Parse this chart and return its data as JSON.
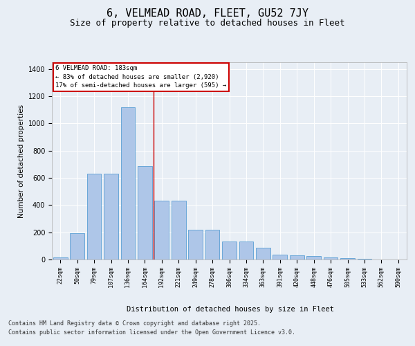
{
  "title1": "6, VELMEAD ROAD, FLEET, GU52 7JY",
  "title2": "Size of property relative to detached houses in Fleet",
  "xlabel": "Distribution of detached houses by size in Fleet",
  "ylabel": "Number of detached properties",
  "categories": [
    "22sqm",
    "50sqm",
    "79sqm",
    "107sqm",
    "136sqm",
    "164sqm",
    "192sqm",
    "221sqm",
    "249sqm",
    "278sqm",
    "306sqm",
    "334sqm",
    "363sqm",
    "391sqm",
    "420sqm",
    "448sqm",
    "476sqm",
    "505sqm",
    "533sqm",
    "562sqm",
    "590sqm"
  ],
  "values": [
    15,
    195,
    630,
    630,
    1120,
    685,
    430,
    430,
    220,
    220,
    130,
    130,
    85,
    35,
    30,
    25,
    15,
    10,
    5,
    0,
    0
  ],
  "bar_color": "#aec6e8",
  "bar_edge_color": "#5a9fd4",
  "annotation_title": "6 VELMEAD ROAD: 183sqm",
  "annotation_line1": "← 83% of detached houses are smaller (2,920)",
  "annotation_line2": "17% of semi-detached houses are larger (595) →",
  "annotation_box_facecolor": "#ffffff",
  "annotation_box_edgecolor": "#cc0000",
  "vline_color": "#cc0000",
  "vline_x": 5.5,
  "ylim": [
    0,
    1450
  ],
  "yticks": [
    0,
    200,
    400,
    600,
    800,
    1000,
    1200,
    1400
  ],
  "footer1": "Contains HM Land Registry data © Crown copyright and database right 2025.",
  "footer2": "Contains public sector information licensed under the Open Government Licence v3.0.",
  "bg_color": "#e8eef5",
  "title1_fontsize": 11,
  "title2_fontsize": 9,
  "ylabel_fontsize": 7.5,
  "xlabel_fontsize": 7.5,
  "tick_fontsize": 6,
  "annot_fontsize": 6.5,
  "footer_fontsize": 6
}
